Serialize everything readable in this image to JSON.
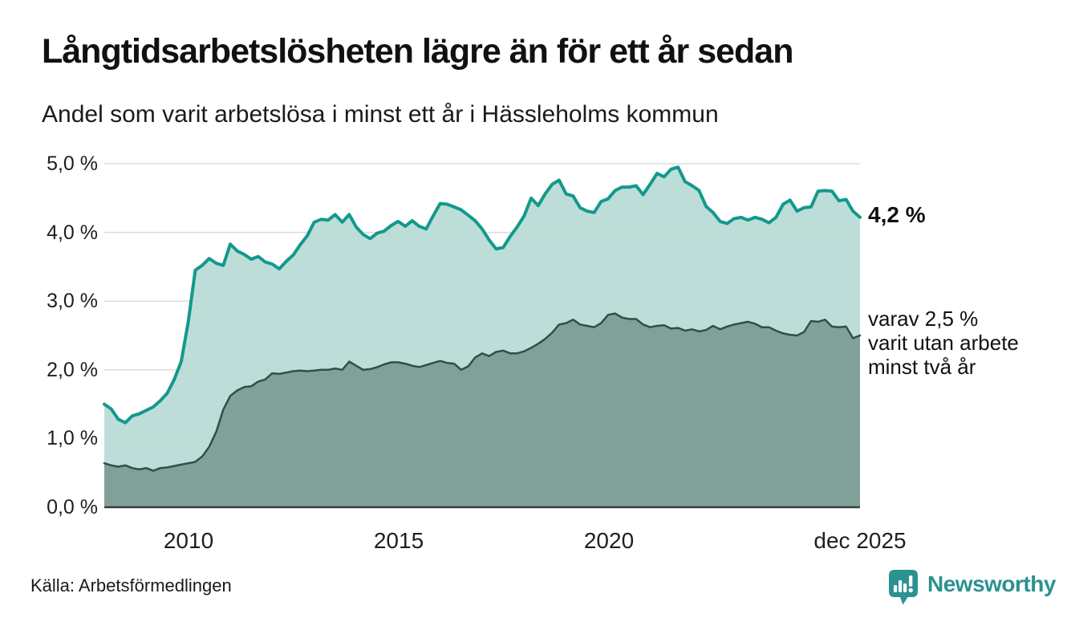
{
  "header": {
    "title": "Långtidsarbetslösheten lägre än för ett år sedan",
    "subtitle": "Andel som varit arbetslösa i minst ett år i Hässleholms kommun"
  },
  "annotations": {
    "latest_value_label": "4,2 %",
    "secondary_label": "varav 2,5 %\nvarit utan arbete\nminst två år"
  },
  "footer": {
    "source": "Källa: Arbetsförmedlingen",
    "brand": "Newsworthy"
  },
  "colors": {
    "series1_line": "#13998b",
    "series1_fill": "#b4dad3",
    "series2_line": "#2f4f4b",
    "series2_fill": "#7c9d96",
    "gridline": "#dcdcdc",
    "baseline": "#3a3a3a",
    "brand_teal": "#2b9191",
    "text": "#1a1a1a"
  },
  "chart_data": {
    "type": "area",
    "title": "Långtidsarbetslösheten lägre än för ett år sedan",
    "subtitle": "Andel som varit arbetslösa i minst ett år i Hässleholms kommun",
    "x_start": "2008-01",
    "x_end": "2025-12",
    "x_domain": [
      2008.0,
      2025.96
    ],
    "ylim": [
      0,
      5
    ],
    "grid": true,
    "y_ticks": [
      {
        "label": "5,0 %",
        "value": 5.0
      },
      {
        "label": "4,0 %",
        "value": 4.0
      },
      {
        "label": "3,0 %",
        "value": 3.0
      },
      {
        "label": "2,0 %",
        "value": 2.0
      },
      {
        "label": "1,0 %",
        "value": 1.0
      },
      {
        "label": "0,0 %",
        "value": 0.0
      }
    ],
    "x_ticks": [
      {
        "label": "2010",
        "t": 2010.0
      },
      {
        "label": "2015",
        "t": 2015.0
      },
      {
        "label": "2020",
        "t": 2020.0
      },
      {
        "label": "dec 2025",
        "t": 2025.96
      }
    ],
    "series": [
      {
        "name": "Arbetslösa minst ett år",
        "end_label": "4,2 %",
        "line_color": "#13998b",
        "fill_color": "#b4dad3",
        "values": [
          1.5,
          1.43,
          1.28,
          1.23,
          1.33,
          1.36,
          1.41,
          1.46,
          1.55,
          1.66,
          1.86,
          2.12,
          2.7,
          3.45,
          3.52,
          3.62,
          3.55,
          3.52,
          3.83,
          3.73,
          3.68,
          3.61,
          3.65,
          3.57,
          3.54,
          3.47,
          3.58,
          3.67,
          3.82,
          3.95,
          4.15,
          4.19,
          4.18,
          4.26,
          4.15,
          4.26,
          4.08,
          3.97,
          3.91,
          3.99,
          4.02,
          4.1,
          4.16,
          4.09,
          4.17,
          4.09,
          4.05,
          4.24,
          4.42,
          4.41,
          4.37,
          4.33,
          4.25,
          4.17,
          4.05,
          3.89,
          3.76,
          3.78,
          3.94,
          4.08,
          4.24,
          4.5,
          4.39,
          4.56,
          4.7,
          4.76,
          4.56,
          4.53,
          4.36,
          4.31,
          4.29,
          4.45,
          4.49,
          4.61,
          4.66,
          4.66,
          4.68,
          4.55,
          4.7,
          4.86,
          4.81,
          4.92,
          4.95,
          4.74,
          4.68,
          4.61,
          4.38,
          4.29,
          4.16,
          4.13,
          4.2,
          4.22,
          4.18,
          4.22,
          4.19,
          4.14,
          4.22,
          4.41,
          4.47,
          4.31,
          4.36,
          4.37,
          4.6,
          4.61,
          4.6,
          4.46,
          4.48,
          4.31,
          4.22
        ]
      },
      {
        "name": "Arbetslösa minst två år",
        "end_label": "2,5 %",
        "line_color": "#2f4f4b",
        "fill_color": "#7c9d96",
        "values": [
          0.64,
          0.61,
          0.59,
          0.61,
          0.57,
          0.55,
          0.57,
          0.53,
          0.57,
          0.58,
          0.6,
          0.62,
          0.64,
          0.66,
          0.74,
          0.88,
          1.1,
          1.42,
          1.62,
          1.7,
          1.75,
          1.76,
          1.83,
          1.86,
          1.95,
          1.94,
          1.96,
          1.98,
          1.99,
          1.98,
          1.99,
          2.0,
          2.0,
          2.02,
          2.0,
          2.12,
          2.06,
          2.0,
          2.01,
          2.04,
          2.08,
          2.11,
          2.11,
          2.09,
          2.06,
          2.04,
          2.07,
          2.1,
          2.13,
          2.1,
          2.09,
          2.0,
          2.05,
          2.18,
          2.24,
          2.2,
          2.26,
          2.28,
          2.24,
          2.24,
          2.27,
          2.32,
          2.38,
          2.45,
          2.54,
          2.66,
          2.68,
          2.73,
          2.66,
          2.64,
          2.62,
          2.68,
          2.8,
          2.82,
          2.76,
          2.74,
          2.74,
          2.66,
          2.62,
          2.64,
          2.65,
          2.6,
          2.61,
          2.57,
          2.59,
          2.56,
          2.58,
          2.64,
          2.59,
          2.63,
          2.66,
          2.68,
          2.7,
          2.67,
          2.62,
          2.62,
          2.57,
          2.53,
          2.51,
          2.5,
          2.55,
          2.71,
          2.7,
          2.73,
          2.63,
          2.62,
          2.63,
          2.46,
          2.5
        ]
      }
    ]
  }
}
